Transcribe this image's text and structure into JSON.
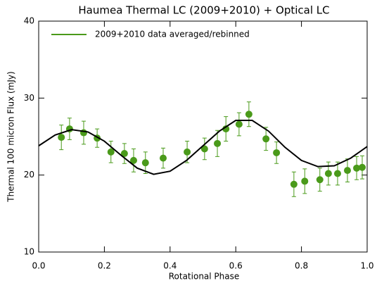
{
  "chart_data": {
    "type": "scatter",
    "title": "Haumea Thermal LC (2009+2010) + Optical LC",
    "x_label": "Rotational Phase",
    "y_label": "Thermal 100 micron Flux (mJy)",
    "xlim": [
      0,
      1
    ],
    "ylim": [
      10,
      40
    ],
    "xticks": [
      {
        "value": 0,
        "label": "0.0"
      },
      0.2,
      0.4,
      0.6,
      0.8,
      {
        "value": 1,
        "label": "1.0"
      }
    ],
    "yticks": [
      10,
      20,
      30,
      40
    ],
    "legend": "top-left",
    "series": [
      {
        "name": "2009+2010 data averaged/rebinned",
        "color": "#4a9a1a",
        "style": "points",
        "x": [
          0.069,
          0.094,
          0.137,
          0.178,
          0.22,
          0.261,
          0.289,
          0.325,
          0.379,
          0.452,
          0.505,
          0.544,
          0.57,
          0.61,
          0.64,
          0.692,
          0.724,
          0.777,
          0.81,
          0.856,
          0.882,
          0.91,
          0.94,
          0.968,
          0.985
        ],
        "values": [
          24.9,
          26.0,
          25.5,
          24.8,
          23.0,
          22.8,
          21.9,
          21.6,
          22.2,
          23.0,
          23.4,
          24.1,
          26.0,
          26.6,
          27.9,
          24.7,
          22.9,
          18.8,
          19.2,
          19.4,
          20.2,
          20.2,
          20.6,
          20.9,
          21.0
        ],
        "errors": [
          1.6,
          1.4,
          1.5,
          1.2,
          1.4,
          1.3,
          1.5,
          1.4,
          1.3,
          1.4,
          1.4,
          1.7,
          1.6,
          1.5,
          1.6,
          1.5,
          1.4,
          1.6,
          1.6,
          1.5,
          1.5,
          1.5,
          1.5,
          1.5,
          1.5
        ]
      },
      {
        "color": "#000000",
        "style": "line",
        "x": [
          0,
          0.05,
          0.1,
          0.15,
          0.2,
          0.25,
          0.3,
          0.35,
          0.4,
          0.45,
          0.5,
          0.55,
          0.6,
          0.65,
          0.7,
          0.75,
          0.8,
          0.85,
          0.9,
          0.95,
          1.0
        ],
        "values": [
          23.8,
          25.2,
          25.9,
          25.6,
          24.4,
          22.6,
          20.9,
          20.1,
          20.5,
          21.9,
          23.8,
          25.7,
          27.1,
          27.1,
          25.7,
          23.6,
          21.9,
          21.1,
          21.2,
          22.2,
          23.7
        ]
      }
    ]
  }
}
